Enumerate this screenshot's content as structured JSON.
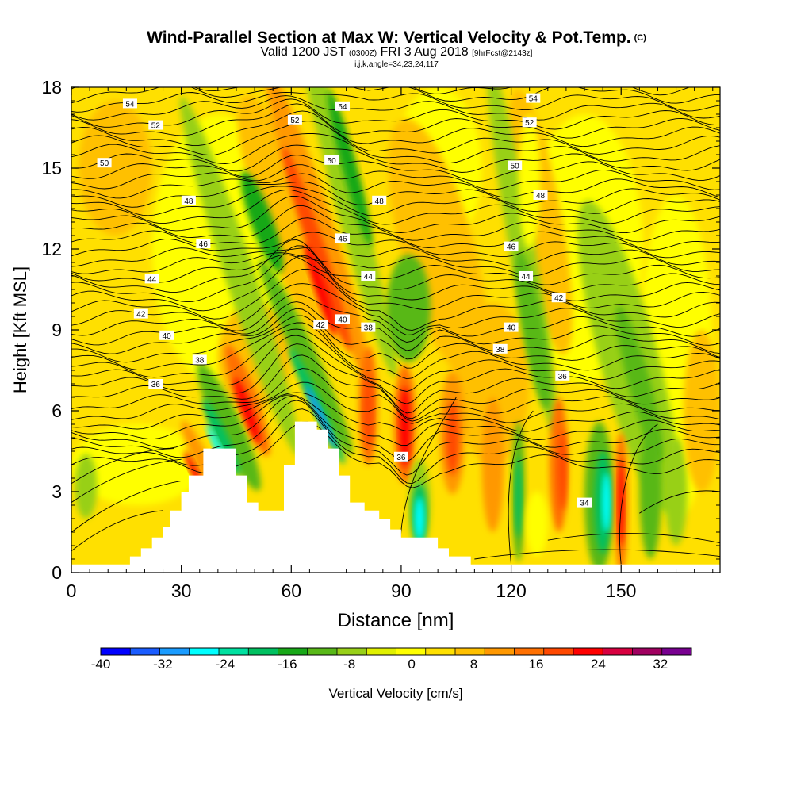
{
  "title": {
    "main": "Wind-Parallel Section at Max W: Vertical Velocity & Pot.Temp.",
    "copyright": "(C)",
    "valid_prefix": "Valid 1200 JST",
    "valid_utc": "(0300Z)",
    "valid_date": "FRI 3 Aug 2018",
    "forecast": "[9hrFcst@2143z]",
    "params": "i,j,k,angle=34,23,24,117"
  },
  "chart_data": {
    "type": "heatmap",
    "xlabel": "Distance [nm]",
    "ylabel": "Height [Kft MSL]",
    "xlim": [
      0,
      177
    ],
    "ylim": [
      0,
      18
    ],
    "x_ticks": [
      0,
      30,
      60,
      90,
      120,
      150
    ],
    "y_ticks": [
      0,
      3,
      6,
      9,
      12,
      15,
      18
    ],
    "colorbar": {
      "label": "Vertical Velocity [cm/s]",
      "range": [
        -40,
        36
      ],
      "step": 4,
      "tick_labels": [
        -40,
        -32,
        -24,
        -16,
        -8,
        0,
        8,
        16,
        24,
        32
      ],
      "colors": [
        "#0000ff",
        "#1a5cff",
        "#1a9cff",
        "#00ffff",
        "#00e0a0",
        "#00c060",
        "#18a818",
        "#58b818",
        "#98d018",
        "#e0f000",
        "#ffff00",
        "#ffe000",
        "#ffc000",
        "#ff9800",
        "#ff7000",
        "#ff4800",
        "#ff0000",
        "#d80040",
        "#a00060",
        "#780090"
      ]
    },
    "contours": {
      "field": "Potential Temperature",
      "labels": [
        {
          "text": "54",
          "x": 16,
          "y": 17.4
        },
        {
          "text": "54",
          "x": 74,
          "y": 17.3
        },
        {
          "text": "54",
          "x": 126,
          "y": 17.6
        },
        {
          "text": "52",
          "x": 23,
          "y": 16.6
        },
        {
          "text": "52",
          "x": 61,
          "y": 16.8
        },
        {
          "text": "52",
          "x": 125,
          "y": 16.7
        },
        {
          "text": "50",
          "x": 9,
          "y": 15.2
        },
        {
          "text": "50",
          "x": 71,
          "y": 15.3
        },
        {
          "text": "50",
          "x": 121,
          "y": 15.1
        },
        {
          "text": "48",
          "x": 32,
          "y": 13.8
        },
        {
          "text": "48",
          "x": 84,
          "y": 13.8
        },
        {
          "text": "48",
          "x": 128,
          "y": 14.0
        },
        {
          "text": "46",
          "x": 36,
          "y": 12.2
        },
        {
          "text": "46",
          "x": 74,
          "y": 12.4
        },
        {
          "text": "46",
          "x": 120,
          "y": 12.1
        },
        {
          "text": "44",
          "x": 22,
          "y": 10.9
        },
        {
          "text": "44",
          "x": 81,
          "y": 11.0
        },
        {
          "text": "44",
          "x": 124,
          "y": 11.0
        },
        {
          "text": "42",
          "x": 19,
          "y": 9.6
        },
        {
          "text": "42",
          "x": 68,
          "y": 9.2
        },
        {
          "text": "42",
          "x": 133,
          "y": 10.2
        },
        {
          "text": "40",
          "x": 26,
          "y": 8.8
        },
        {
          "text": "40",
          "x": 74,
          "y": 9.4
        },
        {
          "text": "40",
          "x": 120,
          "y": 9.1
        },
        {
          "text": "38",
          "x": 35,
          "y": 7.9
        },
        {
          "text": "38",
          "x": 81,
          "y": 9.1
        },
        {
          "text": "38",
          "x": 117,
          "y": 8.3
        },
        {
          "text": "36",
          "x": 23,
          "y": 7.0
        },
        {
          "text": "36",
          "x": 134,
          "y": 7.3
        },
        {
          "text": "36",
          "x": 90,
          "y": 4.3
        },
        {
          "text": "34",
          "x": 140,
          "y": 2.6
        }
      ]
    },
    "terrain_kft": [
      [
        0,
        0.3
      ],
      [
        16,
        0.3
      ],
      [
        16,
        0.6
      ],
      [
        19,
        0.6
      ],
      [
        19,
        0.9
      ],
      [
        22,
        0.9
      ],
      [
        22,
        1.3
      ],
      [
        25,
        1.3
      ],
      [
        25,
        1.7
      ],
      [
        27,
        1.7
      ],
      [
        27,
        2.3
      ],
      [
        30,
        2.3
      ],
      [
        30,
        3.0
      ],
      [
        32,
        3.0
      ],
      [
        32,
        3.6
      ],
      [
        36,
        3.6
      ],
      [
        36,
        4.6
      ],
      [
        45,
        4.6
      ],
      [
        45,
        3.6
      ],
      [
        48,
        3.6
      ],
      [
        48,
        2.6
      ],
      [
        51,
        2.6
      ],
      [
        51,
        2.3
      ],
      [
        58,
        2.3
      ],
      [
        58,
        4.0
      ],
      [
        61,
        4.0
      ],
      [
        61,
        5.6
      ],
      [
        67,
        5.6
      ],
      [
        67,
        5.3
      ],
      [
        70,
        5.3
      ],
      [
        70,
        4.6
      ],
      [
        73,
        4.6
      ],
      [
        73,
        3.6
      ],
      [
        76,
        3.6
      ],
      [
        76,
        2.6
      ],
      [
        80,
        2.6
      ],
      [
        80,
        2.3
      ],
      [
        84,
        2.3
      ],
      [
        84,
        2.0
      ],
      [
        87,
        2.0
      ],
      [
        87,
        1.6
      ],
      [
        90,
        1.6
      ],
      [
        90,
        1.3
      ],
      [
        100,
        1.3
      ],
      [
        100,
        0.9
      ],
      [
        103,
        0.9
      ],
      [
        103,
        0.6
      ],
      [
        109,
        0.6
      ],
      [
        109,
        0.3
      ],
      [
        177,
        0.3
      ]
    ]
  }
}
